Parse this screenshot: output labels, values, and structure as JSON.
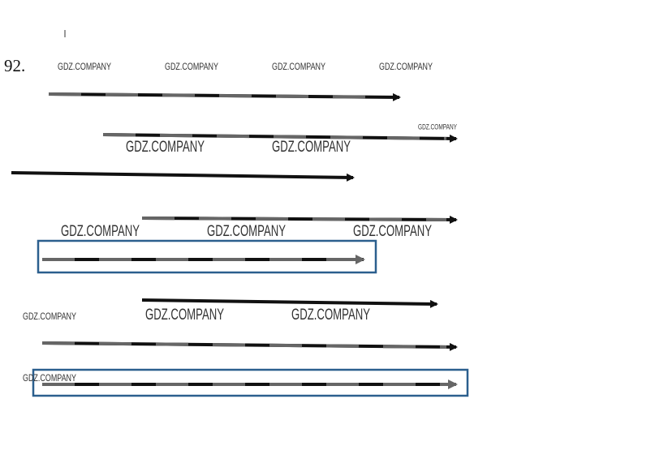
{
  "number": "92.",
  "watermarks": [
    "GDZ.COMPANY",
    "GDZ.COMPANY",
    "GDZ.COMPANY",
    "GDZ.COMPANY",
    "GDZ.COMPANY",
    "GDZ.COMPANY",
    "GDZ.COMPANY",
    "GDZ.COMPANY",
    "GDZ.COMPANY",
    "GDZ.COMPANY",
    "GDZ.COMPANY",
    "GDZ.COMPANY",
    "GDZ.COMPANY",
    "GDZ.COMPANY"
  ]
}
